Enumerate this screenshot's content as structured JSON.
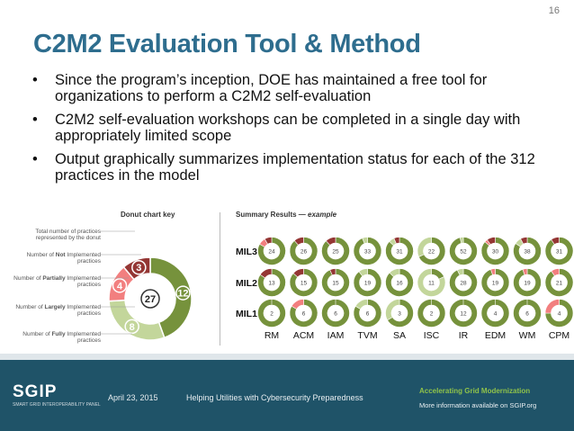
{
  "slide": {
    "page_number": "16",
    "title": "C2M2 Evaluation Tool & Method",
    "bullets": [
      "Since the program’s inception, DOE has maintained a free tool for organizations to perform a C2M2 self-evaluation",
      "C2M2 self-evaluation workshops can be completed in a single day with appropriately limited scope",
      "Output graphically summarizes implementation status for each of the 312 practices in the model"
    ]
  },
  "donut_key": {
    "title": "Donut chart key",
    "labels": {
      "total": "Total number of practices represented by the donut",
      "not": {
        "pre": "Number of ",
        "bold": "Not",
        "post": " Implemented practices"
      },
      "partially": {
        "pre": "Number of ",
        "bold": "Partially",
        "post": " Implemented practices"
      },
      "largely": {
        "pre": "Number of ",
        "bold": "Largely",
        "post": " Implemented practices"
      },
      "fully": {
        "pre": "Number of ",
        "bold": "Fully",
        "post": " Implemented practices"
      }
    }
  },
  "summary": {
    "title_prefix": "Summary Results — ",
    "title_example": "example",
    "domains": [
      "RM",
      "ACM",
      "IAM",
      "TVM",
      "SA",
      "ISC",
      "IR",
      "EDM",
      "WM",
      "CPM"
    ],
    "mil_labels": [
      "MIL3",
      "MIL2",
      "MIL1"
    ]
  },
  "footer": {
    "logo": "SGIP",
    "logo_sub": "SMART GRID INTEROPERABILITY PANEL",
    "date": "April 23, 2015",
    "middle": "Helping Utilities with Cybersecurity Preparedness",
    "tagline": "Accelerating Grid Modernization",
    "more_info": "More information available on SGIP.org"
  },
  "colors": {
    "title": "#2e6d8e",
    "fully": "#76923c",
    "largely": "#c3d69b",
    "partially": "#f27f7f",
    "not": "#943634",
    "footer": "#1f5368"
  },
  "chart_data": {
    "type": "donut",
    "title": "Donut chart key",
    "key_donut": {
      "total": 27,
      "fully": 12,
      "largely": 8,
      "partially": 4,
      "not": 3
    },
    "summary_grid": {
      "rows": [
        "MIL3",
        "MIL2",
        "MIL1"
      ],
      "columns": [
        "RM",
        "ACM",
        "IAM",
        "TVM",
        "SA",
        "ISC",
        "IR",
        "EDM",
        "WM",
        "CPM"
      ],
      "MIL3": [
        {
          "total": 24,
          "fully": 20,
          "largely": 0,
          "partially": 2,
          "not": 2
        },
        {
          "total": 26,
          "fully": 23,
          "largely": 0,
          "partially": 0,
          "not": 3
        },
        {
          "total": 25,
          "fully": 22,
          "largely": 0,
          "partially": 0,
          "not": 3
        },
        {
          "total": 33,
          "fully": 31,
          "largely": 2,
          "partially": 0,
          "not": 0
        },
        {
          "total": 31,
          "fully": 27,
          "largely": 2,
          "partially": 0,
          "not": 2
        },
        {
          "total": 22,
          "fully": 15,
          "largely": 7,
          "partially": 0,
          "not": 0
        },
        {
          "total": 52,
          "fully": 50,
          "largely": 2,
          "partially": 0,
          "not": 0
        },
        {
          "total": 30,
          "fully": 26,
          "largely": 0,
          "partially": 1,
          "not": 3
        },
        {
          "total": 38,
          "fully": 32,
          "largely": 3,
          "partially": 0,
          "not": 3
        },
        {
          "total": 31,
          "fully": 28,
          "largely": 0,
          "partially": 0,
          "not": 3
        }
      ],
      "MIL2": [
        {
          "total": 13,
          "fully": 11,
          "largely": 0,
          "partially": 0,
          "not": 2
        },
        {
          "total": 15,
          "fully": 13,
          "largely": 0,
          "partially": 0,
          "not": 2
        },
        {
          "total": 15,
          "fully": 14,
          "largely": 0,
          "partially": 0,
          "not": 1
        },
        {
          "total": 19,
          "fully": 17,
          "largely": 2,
          "partially": 0,
          "not": 0
        },
        {
          "total": 16,
          "fully": 14,
          "largely": 2,
          "partially": 0,
          "not": 0
        },
        {
          "total": 11,
          "fully": 2,
          "largely": 9,
          "partially": 0,
          "not": 0
        },
        {
          "total": 28,
          "fully": 26,
          "largely": 2,
          "partially": 0,
          "not": 0
        },
        {
          "total": 19,
          "fully": 18,
          "largely": 0,
          "partially": 1,
          "not": 0
        },
        {
          "total": 19,
          "fully": 18,
          "largely": 0,
          "partially": 1,
          "not": 0
        },
        {
          "total": 21,
          "fully": 19,
          "largely": 0,
          "partially": 2,
          "not": 0
        }
      ],
      "MIL1": [
        {
          "total": 2,
          "fully": 2,
          "largely": 0,
          "partially": 0,
          "not": 0
        },
        {
          "total": 6,
          "fully": 5,
          "largely": 0,
          "partially": 1,
          "not": 0
        },
        {
          "total": 6,
          "fully": 6,
          "largely": 0,
          "partially": 0,
          "not": 0
        },
        {
          "total": 6,
          "fully": 5,
          "largely": 1,
          "partially": 0,
          "not": 0
        },
        {
          "total": 3,
          "fully": 2,
          "largely": 1,
          "partially": 0,
          "not": 0
        },
        {
          "total": 2,
          "fully": 2,
          "largely": 0,
          "partially": 0,
          "not": 0
        },
        {
          "total": 12,
          "fully": 12,
          "largely": 0,
          "partially": 0,
          "not": 0
        },
        {
          "total": 4,
          "fully": 4,
          "largely": 0,
          "partially": 0,
          "not": 0
        },
        {
          "total": 6,
          "fully": 6,
          "largely": 0,
          "partially": 0,
          "not": 0
        },
        {
          "total": 4,
          "fully": 3,
          "largely": 0,
          "partially": 1,
          "not": 0
        }
      ]
    }
  }
}
